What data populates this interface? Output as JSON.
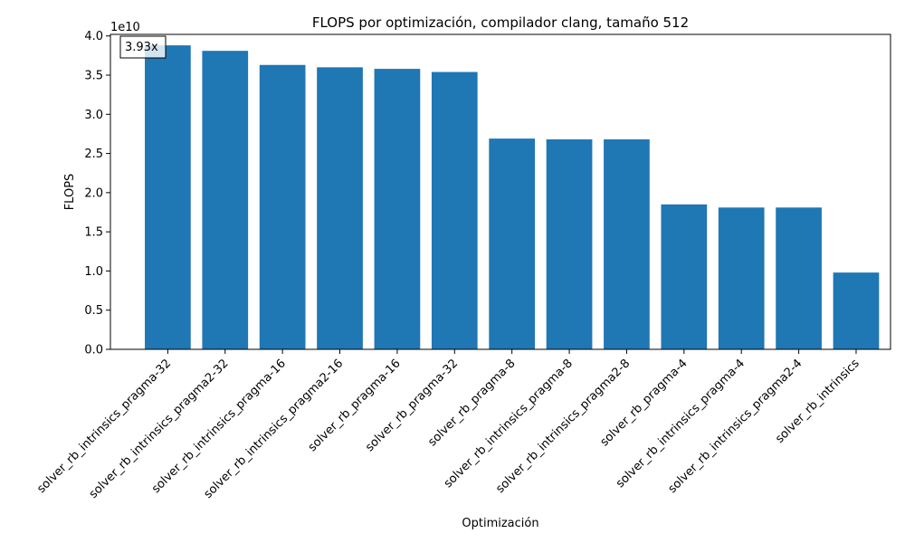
{
  "chart_data": {
    "type": "bar",
    "title": "FLOPS por optimización, compilador clang, tamaño 512",
    "xlabel": "Optimización",
    "ylabel": "FLOPS",
    "y_offset_label": "1e10",
    "y_scale": 10000000000.0,
    "ylim": [
      0,
      40200000000.0
    ],
    "yticks": [
      0,
      5000000000.0,
      10000000000.0,
      15000000000.0,
      20000000000.0,
      25000000000.0,
      30000000000.0,
      35000000000.0,
      40000000000.0
    ],
    "ytick_labels": [
      "0.0",
      "0.5",
      "1.0",
      "1.5",
      "2.0",
      "2.5",
      "3.0",
      "3.5",
      "4.0"
    ],
    "grid": false,
    "bar_color": "#1f77b4",
    "categories": [
      "solver_rb_intrinsics_pragma-32",
      "solver_rb_intrinsics_pragma2-32",
      "solver_rb_intrinsics_pragma-16",
      "solver_rb_intrinsics_pragma2-16",
      "solver_rb_pragma-16",
      "solver_rb_pragma-32",
      "solver_rb_pragma-8",
      "solver_rb_intrinsics_pragma-8",
      "solver_rb_intrinsics_pragma2-8",
      "solver_rb_pragma-4",
      "solver_rb_intrinsics_pragma-4",
      "solver_rb_intrinsics_pragma2-4",
      "solver_rb_intrinsics"
    ],
    "values": [
      38800000000.0,
      38100000000.0,
      36300000000.0,
      36000000000.0,
      35800000000.0,
      35400000000.0,
      26900000000.0,
      26800000000.0,
      26800000000.0,
      18500000000.0,
      18100000000.0,
      18100000000.0,
      9800000000.0
    ],
    "annotation": "3.93x"
  }
}
